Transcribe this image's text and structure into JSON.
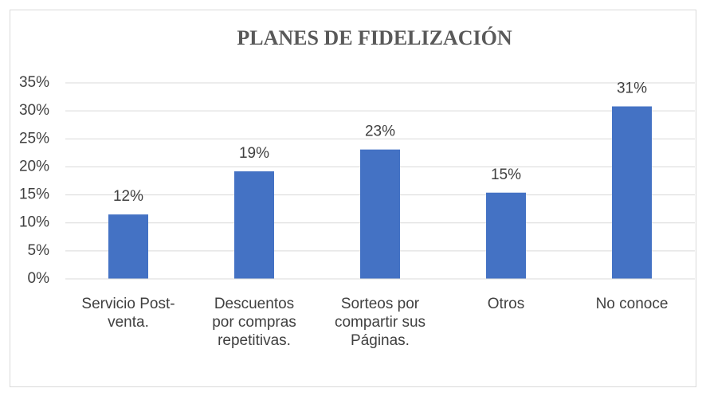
{
  "chart_data": {
    "type": "bar",
    "title": "PLANES DE FIDELIZACIÓN",
    "categories": [
      "Servicio Post-\nventa.",
      "Descuentos\npor compras\nrepetitivas.",
      "Sorteos por\ncompartir sus\nPáginas.",
      "Otros",
      "No conoce"
    ],
    "values": [
      11.5,
      19.2,
      23.1,
      15.4,
      30.8
    ],
    "value_labels": [
      "12%",
      "19%",
      "23%",
      "15%",
      "31%"
    ],
    "color": "#4472c4",
    "ylim": [
      0,
      35
    ],
    "yticks": [
      {
        "value": 0,
        "label": "0%"
      },
      {
        "value": 5,
        "label": "5%"
      },
      {
        "value": 10,
        "label": "10%"
      },
      {
        "value": 15,
        "label": "15%"
      },
      {
        "value": 20,
        "label": "20%"
      },
      {
        "value": 25,
        "label": "25%"
      },
      {
        "value": 30,
        "label": "30%"
      },
      {
        "value": 35,
        "label": "35%"
      }
    ],
    "grid": true
  }
}
